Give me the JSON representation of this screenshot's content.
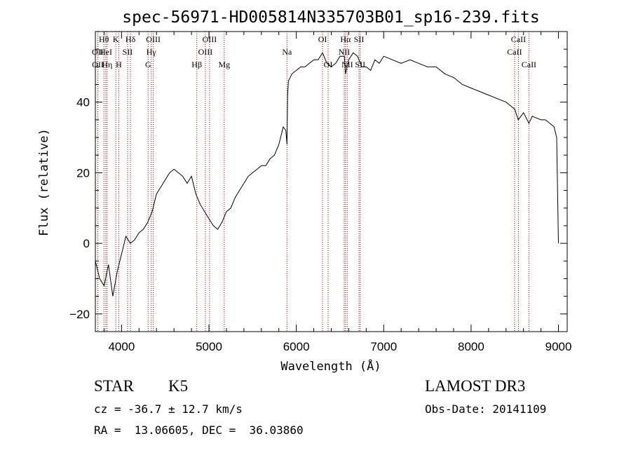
{
  "title": "spec-56971-HD005814N335703B01_sp16-239.fits",
  "info": {
    "object_class": "STAR",
    "subclass": "K5",
    "survey": "LAMOST DR3",
    "cz": "cz = -36.7 ± 12.7 km/s",
    "obs_date": "Obs-Date: 20141109",
    "coords": "RA =  13.06605, DEC =  36.03860"
  },
  "chart_data": {
    "type": "line",
    "title": "spec-56971-HD005814N335703B01_sp16-239.fits",
    "xlabel": "Wavelength (Å)",
    "ylabel": "Flux (relative)",
    "xlim": [
      3700,
      9100
    ],
    "ylim": [
      -25,
      60
    ],
    "xticks": [
      4000,
      5000,
      6000,
      7000,
      8000,
      9000
    ],
    "yticks": [
      -20,
      0,
      20,
      40
    ],
    "grid": false,
    "line_color": "#000000",
    "marker_color": "#aa0000",
    "series": [
      {
        "x": [
          3700,
          3750,
          3800,
          3850,
          3900,
          3950,
          4000,
          4050,
          4100,
          4150,
          4200,
          4250,
          4300,
          4350,
          4400,
          4450,
          4500,
          4550,
          4600,
          4650,
          4700,
          4750,
          4800,
          4850,
          4900,
          4950,
          5000,
          5050,
          5100,
          5150,
          5200,
          5250,
          5300,
          5350,
          5400,
          5450,
          5500,
          5550,
          5600,
          5650,
          5700,
          5750,
          5800,
          5850,
          5880,
          5893,
          5900,
          5910,
          5950,
          6000,
          6050,
          6100,
          6150,
          6200,
          6250,
          6300,
          6350,
          6400,
          6450,
          6500,
          6550,
          6563,
          6600,
          6650,
          6700,
          6750,
          6800,
          6850,
          6900,
          6950,
          7000,
          7100,
          7200,
          7300,
          7400,
          7500,
          7600,
          7700,
          7800,
          7900,
          8000,
          8100,
          8200,
          8300,
          8400,
          8500,
          8540,
          8600,
          8662,
          8700,
          8800,
          8850,
          8900,
          8950,
          8980,
          9000
        ],
        "values": [
          -5,
          -10,
          -12,
          -6,
          -15,
          -8,
          -3,
          2,
          0,
          1,
          3,
          4,
          6,
          9,
          14,
          16,
          18,
          20,
          21,
          20,
          19,
          17,
          19,
          14,
          11,
          9,
          7,
          5,
          4,
          6,
          9,
          10,
          13,
          15,
          17,
          19,
          20,
          21,
          22,
          22,
          24,
          25,
          28,
          33,
          32,
          28,
          42,
          46,
          48,
          49,
          50,
          50,
          51,
          52,
          52,
          54,
          51,
          50,
          51,
          53,
          53,
          48,
          52,
          54,
          53,
          50,
          50,
          49,
          52,
          51,
          53,
          52,
          51,
          52,
          51,
          50,
          50,
          48,
          47,
          45,
          44,
          43,
          42,
          41,
          40,
          38,
          35,
          37,
          34,
          36,
          35,
          35,
          34,
          33,
          30,
          0
        ]
      }
    ],
    "spectral_lines": [
      {
        "label": "Hθ",
        "wavelength": 3798,
        "row": 0
      },
      {
        "label": "OII",
        "wavelength": 3727,
        "row": 1
      },
      {
        "label": "OII",
        "wavelength": 3729,
        "row": 2
      },
      {
        "label": "HeI",
        "wavelength": 3820,
        "row": 1
      },
      {
        "label": "Hη",
        "wavelength": 3835,
        "row": 2
      },
      {
        "label": "K",
        "wavelength": 3934,
        "row": 0
      },
      {
        "label": "SII",
        "wavelength": 4069,
        "row": 1
      },
      {
        "label": "H",
        "wavelength": 3968,
        "row": 2
      },
      {
        "label": "Hδ",
        "wavelength": 4102,
        "row": 0
      },
      {
        "label": "OIII",
        "wavelength": 4363,
        "row": 0
      },
      {
        "label": "Hγ",
        "wavelength": 4340,
        "row": 1
      },
      {
        "label": "G",
        "wavelength": 4304,
        "row": 2
      },
      {
        "label": "OIII",
        "wavelength": 5007,
        "row": 0
      },
      {
        "label": "OIII",
        "wavelength": 4959,
        "row": 1
      },
      {
        "label": "Hβ",
        "wavelength": 4861,
        "row": 2
      },
      {
        "label": "Mg",
        "wavelength": 5175,
        "row": 2
      },
      {
        "label": "Na",
        "wavelength": 5893,
        "row": 1
      },
      {
        "label": "OI",
        "wavelength": 6300,
        "row": 0
      },
      {
        "label": "OI",
        "wavelength": 6364,
        "row": 2
      },
      {
        "label": "Hα",
        "wavelength": 6563,
        "row": 0
      },
      {
        "label": "SII",
        "wavelength": 6717,
        "row": 0
      },
      {
        "label": "NII",
        "wavelength": 6548,
        "row": 1
      },
      {
        "label": "NII",
        "wavelength": 6583,
        "row": 2
      },
      {
        "label": "SII",
        "wavelength": 6731,
        "row": 2
      },
      {
        "label": "CaII",
        "wavelength": 8542,
        "row": 0
      },
      {
        "label": "CaII",
        "wavelength": 8498,
        "row": 1
      },
      {
        "label": "CaII",
        "wavelength": 8662,
        "row": 2
      }
    ]
  }
}
